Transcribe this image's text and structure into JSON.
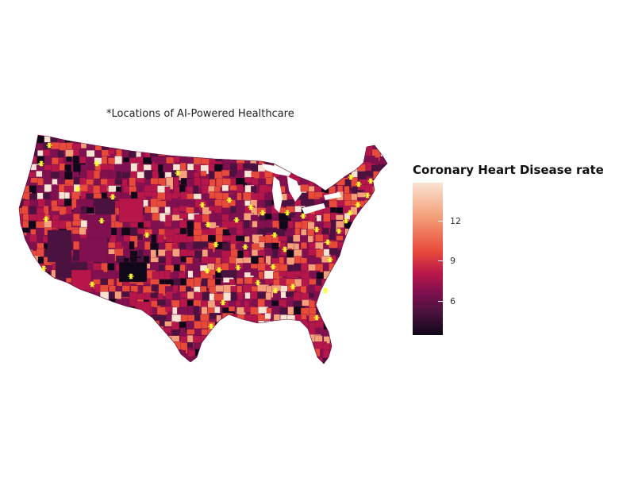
{
  "chart_data": {
    "type": "choropleth",
    "subtitle": "*Locations of AI-Powered Healthcare",
    "legend": {
      "title": "Coronary Heart Disease rate",
      "ticks": [
        "12",
        "9",
        "6"
      ],
      "range": [
        3.5,
        15
      ],
      "colors": [
        "#f9e3d3",
        "#f4a07a",
        "#e84a3a",
        "#b7164a",
        "#80104f",
        "#4a123e",
        "#100818"
      ]
    },
    "marker_color": "#ffff33",
    "marker_symbol": "asterisk"
  }
}
